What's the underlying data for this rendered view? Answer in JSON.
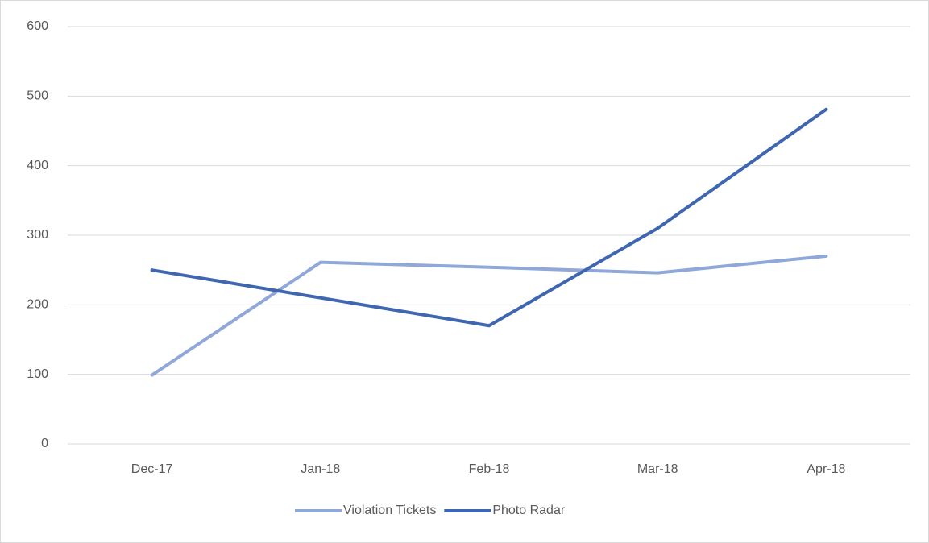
{
  "chart_data": {
    "type": "line",
    "categories": [
      "Dec-17",
      "Jan-18",
      "Feb-18",
      "Mar-18",
      "Apr-18"
    ],
    "series": [
      {
        "name": "Violation Tickets",
        "color": "#8fa7d9",
        "values": [
          99,
          261,
          254,
          246,
          270
        ]
      },
      {
        "name": "Photo Radar",
        "color": "#3f66b1",
        "values": [
          250,
          210,
          170,
          310,
          481
        ]
      }
    ],
    "ylim": [
      0,
      600
    ],
    "yticks": [
      0,
      100,
      200,
      300,
      400,
      500,
      600
    ],
    "grid": true,
    "legend": "bottom"
  }
}
